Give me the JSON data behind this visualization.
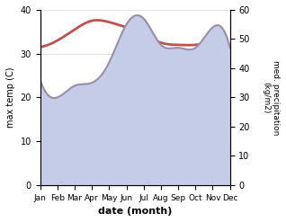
{
  "months": [
    "Jan",
    "Feb",
    "Mar",
    "Apr",
    "May",
    "Jun",
    "Jul",
    "Aug",
    "Sep",
    "Oct",
    "Nov",
    "Dec"
  ],
  "x": [
    0,
    1,
    2,
    3,
    4,
    5,
    6,
    7,
    8,
    9,
    10,
    11
  ],
  "max_temp": [
    31.5,
    33.0,
    35.5,
    37.5,
    37.2,
    36.0,
    34.5,
    32.5,
    32.0,
    32.0,
    32.5,
    32.0
  ],
  "precipitation": [
    36,
    30,
    34,
    35,
    42,
    55,
    57,
    48,
    47,
    47,
    54,
    47
  ],
  "temp_color": "#c0504d",
  "precip_line_color": "#9b8ea8",
  "precip_fill_color": "#c5cce8",
  "xlabel": "date (month)",
  "ylabel_left": "max temp (C)",
  "ylabel_right": "med. precipitation\n(kg/m2)",
  "ylim_left": [
    0,
    40
  ],
  "ylim_right": [
    0,
    60
  ],
  "yticks_left": [
    0,
    10,
    20,
    30,
    40
  ],
  "yticks_right": [
    0,
    10,
    20,
    30,
    40,
    50,
    60
  ],
  "bg_color": "#ffffff",
  "temp_linewidth": 2.0,
  "precip_linewidth": 1.5
}
